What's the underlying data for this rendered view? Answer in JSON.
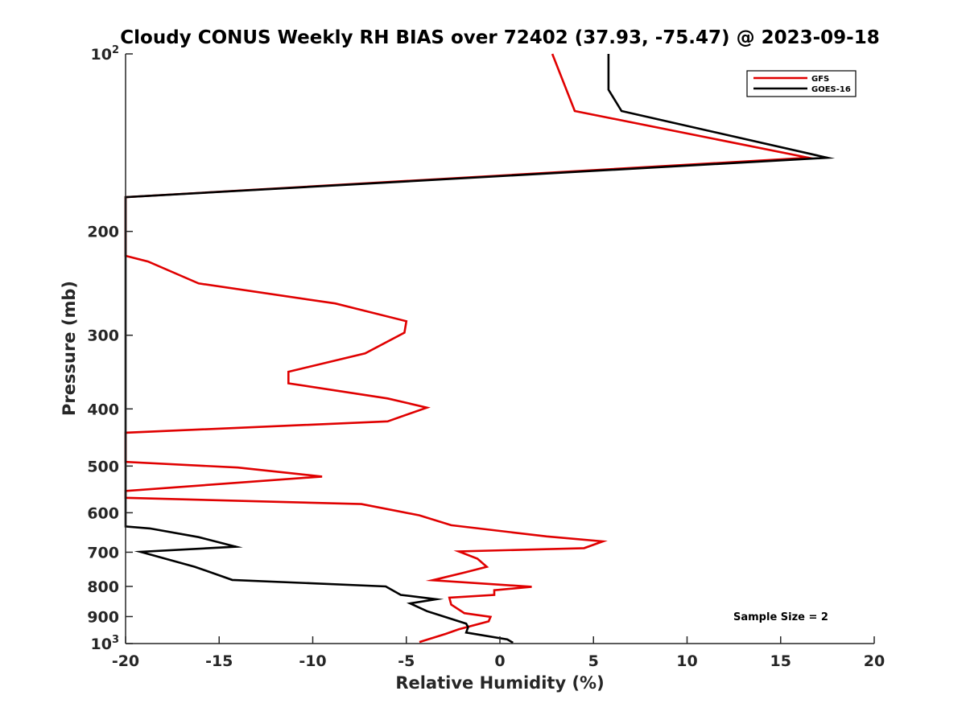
{
  "chart_data": {
    "type": "line",
    "title": "Cloudy CONUS Weekly RH BIAS over 72402 (37.93, -75.47) @ 2023-09-18",
    "xlabel": "Relative Humidity (%)",
    "ylabel": "Pressure (mb)",
    "xlim": [
      -20,
      20
    ],
    "ylim": [
      1000,
      100
    ],
    "yscale": "log",
    "y_reversed": true,
    "x_ticks": [
      "-20",
      "-15",
      "-10",
      "-5",
      "0",
      "5",
      "10",
      "15",
      "20"
    ],
    "y_ticks": [
      {
        "value": 100,
        "base": "10",
        "exp": "2"
      },
      {
        "value": 200,
        "base": "200",
        "exp": ""
      },
      {
        "value": 300,
        "base": "300",
        "exp": ""
      },
      {
        "value": 400,
        "base": "400",
        "exp": ""
      },
      {
        "value": 500,
        "base": "500",
        "exp": ""
      },
      {
        "value": 600,
        "base": "600",
        "exp": ""
      },
      {
        "value": 700,
        "base": "700",
        "exp": ""
      },
      {
        "value": 800,
        "base": "800",
        "exp": ""
      },
      {
        "value": 900,
        "base": "900",
        "exp": ""
      },
      {
        "value": 1000,
        "base": "10",
        "exp": "3"
      }
    ],
    "grid": false,
    "legend_position": "top-right",
    "annotation": "Sample Size = 2",
    "series": [
      {
        "name": "GFS",
        "color": "#e00000",
        "points": [
          [
            2.8,
            100
          ],
          [
            4.0,
            125
          ],
          [
            16.5,
            150
          ],
          [
            -20,
            175
          ],
          [
            -20,
            220
          ],
          [
            -18.8,
            225
          ],
          [
            -16.1,
            245
          ],
          [
            -8.8,
            265
          ],
          [
            -5.0,
            284
          ],
          [
            -5.1,
            297
          ],
          [
            -7.2,
            322
          ],
          [
            -11.3,
            346
          ],
          [
            -11.3,
            362
          ],
          [
            -6.0,
            384
          ],
          [
            -3.9,
            398
          ],
          [
            -6.0,
            420
          ],
          [
            -20,
            439
          ],
          [
            -20,
            492
          ],
          [
            -14.0,
            503
          ],
          [
            -9.5,
            521
          ],
          [
            -20,
            551
          ],
          [
            -20,
            566
          ],
          [
            -7.4,
            580
          ],
          [
            -4.3,
            606
          ],
          [
            -2.6,
            630
          ],
          [
            2.5,
            658
          ],
          [
            5.5,
            671
          ],
          [
            4.5,
            689
          ],
          [
            -2.2,
            698
          ],
          [
            -1.2,
            718
          ],
          [
            -0.7,
            741
          ],
          [
            -1.9,
            758
          ],
          [
            -3.6,
            781
          ],
          [
            1.7,
            801
          ],
          [
            -0.3,
            812
          ],
          [
            -0.3,
            827
          ],
          [
            -2.7,
            836
          ],
          [
            -2.6,
            859
          ],
          [
            -1.9,
            888
          ],
          [
            -0.5,
            901
          ],
          [
            -0.6,
            917
          ],
          [
            -2.2,
            946
          ],
          [
            -2.9,
            963
          ],
          [
            -4.3,
            994
          ]
        ]
      },
      {
        "name": "GOES-16",
        "color": "#000000",
        "points": [
          [
            5.8,
            100
          ],
          [
            5.8,
            115
          ],
          [
            6.5,
            125
          ],
          [
            17.5,
            150
          ],
          [
            -20,
            175
          ],
          [
            -20,
            633
          ],
          [
            -18.7,
            638
          ],
          [
            -16.1,
            660
          ],
          [
            -14.1,
            685
          ],
          [
            -19.2,
            699
          ],
          [
            -16.3,
            741
          ],
          [
            -14.3,
            780
          ],
          [
            -6.1,
            800
          ],
          [
            -5.3,
            827
          ],
          [
            -3.4,
            841
          ],
          [
            -4.8,
            855
          ],
          [
            -3.9,
            881
          ],
          [
            -1.8,
            925
          ],
          [
            -1.7,
            938
          ],
          [
            -1.8,
            958
          ],
          [
            0.4,
            984
          ],
          [
            0.7,
            997
          ]
        ]
      }
    ]
  }
}
